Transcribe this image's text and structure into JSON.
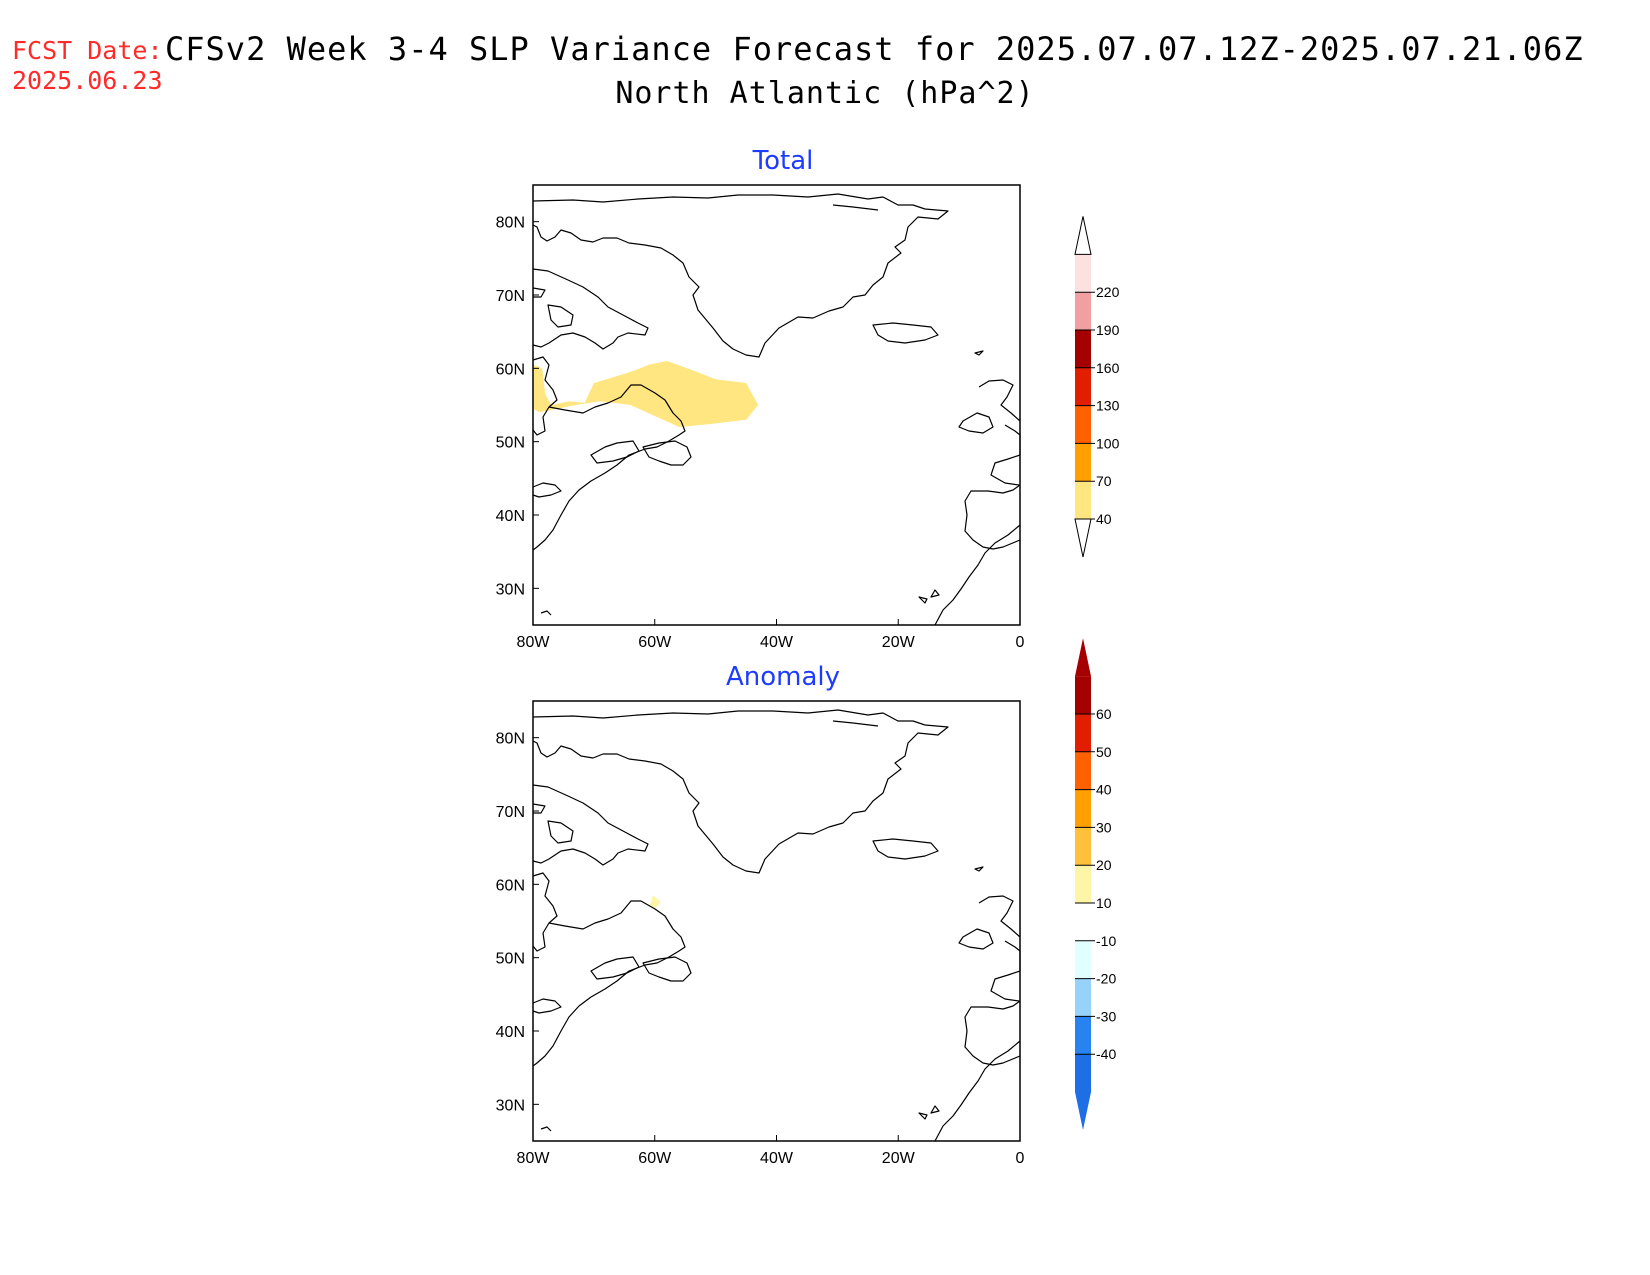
{
  "header": {
    "fcst_label": "FCST Date:",
    "fcst_date": "2025.06.23",
    "title": "CFSv2 Week 3-4 SLP Variance Forecast for 2025.07.07.12Z-2025.07.21.06Z",
    "subtitle": "North Atlantic (hPa^2)"
  },
  "map": {
    "lon_range": [
      -80,
      0
    ],
    "lat_range": [
      25,
      85
    ],
    "lon_ticks": [
      {
        "value": -80,
        "label": "80W"
      },
      {
        "value": -60,
        "label": "60W"
      },
      {
        "value": -40,
        "label": "40W"
      },
      {
        "value": -20,
        "label": "20W"
      },
      {
        "value": 0,
        "label": "0"
      }
    ],
    "lat_ticks": [
      {
        "value": 30,
        "label": "30N"
      },
      {
        "value": 40,
        "label": "40N"
      },
      {
        "value": 50,
        "label": "50N"
      },
      {
        "value": 60,
        "label": "60N"
      },
      {
        "value": 70,
        "label": "70N"
      },
      {
        "value": 80,
        "label": "80N"
      }
    ]
  },
  "panels": [
    {
      "title": "Total",
      "shaded_regions": [
        {
          "color": "#ffe680",
          "level": "40-70",
          "polygon": [
            [
              -80,
              60.5
            ],
            [
              -78.5,
              60
            ],
            [
              -78,
              56.5
            ],
            [
              -77,
              55
            ],
            [
              -74,
              55.5
            ],
            [
              -71.5,
              55.3
            ],
            [
              -70,
              58
            ],
            [
              -66,
              59
            ],
            [
              -63,
              59.8
            ],
            [
              -61,
              60.5
            ],
            [
              -58,
              61
            ],
            [
              -54,
              59.8
            ],
            [
              -50,
              58.5
            ],
            [
              -45,
              58
            ],
            [
              -43,
              55
            ],
            [
              -45,
              53
            ],
            [
              -51,
              52.4
            ],
            [
              -56,
              52
            ],
            [
              -60,
              53.5
            ],
            [
              -64,
              55
            ],
            [
              -69,
              55.5
            ],
            [
              -73,
              55
            ],
            [
              -76,
              54.5
            ],
            [
              -79,
              54
            ],
            [
              -80,
              54.5
            ]
          ]
        }
      ],
      "colorbar": {
        "levels": [
          "40",
          "70",
          "100",
          "130",
          "160",
          "190",
          "220"
        ],
        "colors": [
          "#ffe680",
          "#ffa000",
          "#ff6000",
          "#e11e00",
          "#a50000",
          "#f0a0a0",
          "#fde0e0"
        ],
        "arrow_top": true,
        "arrow_bottom": true
      }
    },
    {
      "title": "Anomaly",
      "shaded_regions": [
        {
          "color": "#fff5a8",
          "level": "10-20",
          "polygon": [
            [
              -60.3,
              58.5
            ],
            [
              -59,
              57.6
            ],
            [
              -60,
              56.6
            ],
            [
              -60.8,
              57.2
            ]
          ]
        }
      ],
      "colorbar": {
        "levels": [
          "-40",
          "-30",
          "-20",
          "-10",
          "10",
          "20",
          "30",
          "40",
          "50",
          "60"
        ],
        "colors": [
          "#1e6ee6",
          "#2882f0",
          "#96d2fa",
          "#e1ffff",
          "#ffffff",
          "#fff5a8",
          "#ffc03c",
          "#ffa000",
          "#ff6000",
          "#e11e00",
          "#a50000"
        ],
        "arrow_top": true,
        "arrow_bottom": true
      }
    }
  ]
}
